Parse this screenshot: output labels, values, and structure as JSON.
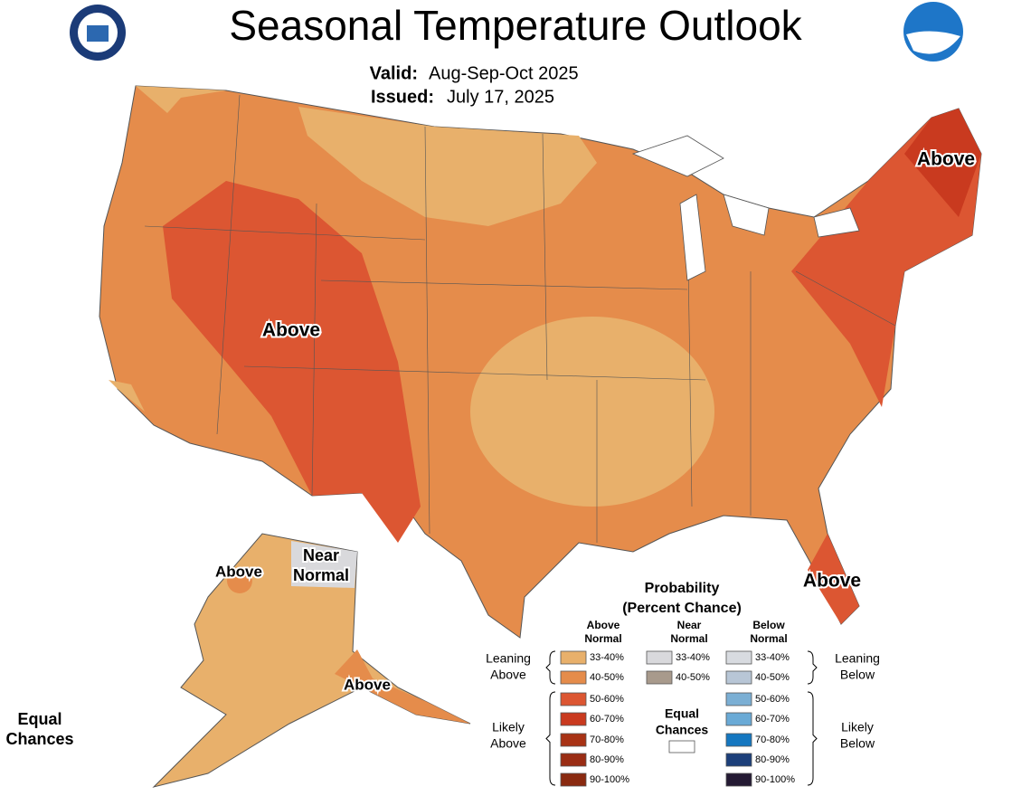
{
  "header": {
    "title": "Seasonal Temperature Outlook",
    "valid_label": "Valid:",
    "valid_value": "Aug-Sep-Oct 2025",
    "issued_label": "Issued:",
    "issued_value": "July 17, 2025"
  },
  "map_labels": {
    "above_west": "Above",
    "above_northeast": "Above",
    "above_florida": "Above",
    "above_alaska_west": "Above",
    "above_alaska_south": "Above",
    "near_normal": [
      "Near",
      "Normal"
    ],
    "equal_chances": [
      "Equal",
      "Chances"
    ]
  },
  "legend": {
    "title": [
      "Probability",
      "(Percent Chance)"
    ],
    "columns": [
      {
        "header": [
          "Above",
          "Normal"
        ],
        "items": [
          {
            "label": "33-40%",
            "color": "#e8b06b"
          },
          {
            "label": "40-50%",
            "color": "#e58c4b"
          },
          {
            "label": "50-60%",
            "color": "#dc5632"
          },
          {
            "label": "60-70%",
            "color": "#c93a1f"
          },
          {
            "label": "70-80%",
            "color": "#a83215"
          },
          {
            "label": "80-90%",
            "color": "#9a2d14"
          },
          {
            "label": "90-100%",
            "color": "#8a2a10"
          }
        ]
      },
      {
        "header": [
          "Near",
          "Normal"
        ],
        "items": [
          {
            "label": "33-40%",
            "color": "#d9d9dc"
          },
          {
            "label": "40-50%",
            "color": "#a89a8c"
          }
        ]
      },
      {
        "header": [
          "Below",
          "Normal"
        ],
        "items": [
          {
            "label": "33-40%",
            "color": "#d8dbe0"
          },
          {
            "label": "40-50%",
            "color": "#b8c6d6"
          },
          {
            "label": "50-60%",
            "color": "#7bafd4"
          },
          {
            "label": "60-70%",
            "color": "#6aaad6"
          },
          {
            "label": "70-80%",
            "color": "#1577c0"
          },
          {
            "label": "80-90%",
            "color": "#1c3f7a"
          },
          {
            "label": "90-100%",
            "color": "#241a33"
          }
        ]
      }
    ],
    "leaning_above": [
      "Leaning",
      "Above"
    ],
    "likely_above": [
      "Likely",
      "Above"
    ],
    "leaning_below": [
      "Leaning",
      "Below"
    ],
    "likely_below": [
      "Likely",
      "Below"
    ],
    "equal_chances": [
      "Equal",
      "Chances"
    ]
  }
}
